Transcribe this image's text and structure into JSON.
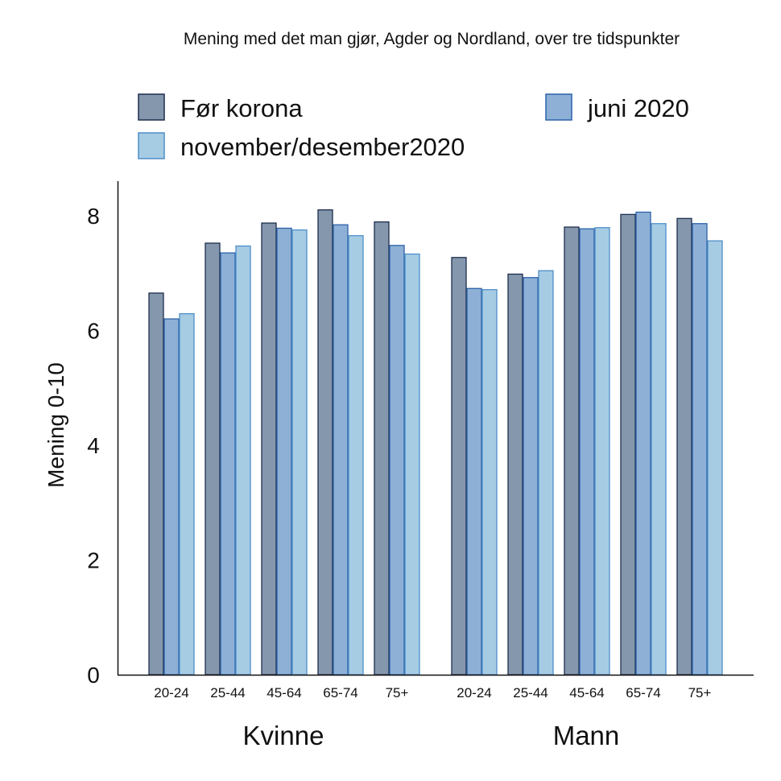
{
  "chart_data": {
    "type": "bar",
    "title": "Mening med det man gjør, Agder og Nordland, over tre tidspunkter",
    "ylabel": "Mening 0-10",
    "xlabel": "",
    "ylim": [
      0,
      8.6
    ],
    "yticks": [
      0,
      2,
      4,
      6,
      8
    ],
    "grid": false,
    "legend_position": "top",
    "groups": [
      {
        "label": "Kvinne",
        "categories": [
          "20-24",
          "25-44",
          "45-64",
          "65-74",
          "75+"
        ]
      },
      {
        "label": "Mann",
        "categories": [
          "20-24",
          "25-44",
          "45-64",
          "65-74",
          "75+"
        ]
      }
    ],
    "series": [
      {
        "name": "Før korona",
        "color": "#8597ad",
        "stroke": "#1e2e4d",
        "values": [
          6.65,
          7.52,
          7.87,
          8.1,
          7.89,
          7.27,
          6.98,
          7.8,
          8.02,
          7.95
        ]
      },
      {
        "name": "juni 2020",
        "color": "#8eb0d6",
        "stroke": "#2c62a8",
        "values": [
          6.2,
          7.35,
          7.78,
          7.84,
          7.48,
          6.73,
          6.92,
          7.77,
          8.06,
          7.86
        ]
      },
      {
        "name": "november/desember2020",
        "color": "#a6cce4",
        "stroke": "#4f8fc8",
        "values": [
          6.29,
          7.47,
          7.75,
          7.65,
          7.33,
          6.71,
          7.04,
          7.79,
          7.86,
          7.56
        ]
      }
    ]
  }
}
